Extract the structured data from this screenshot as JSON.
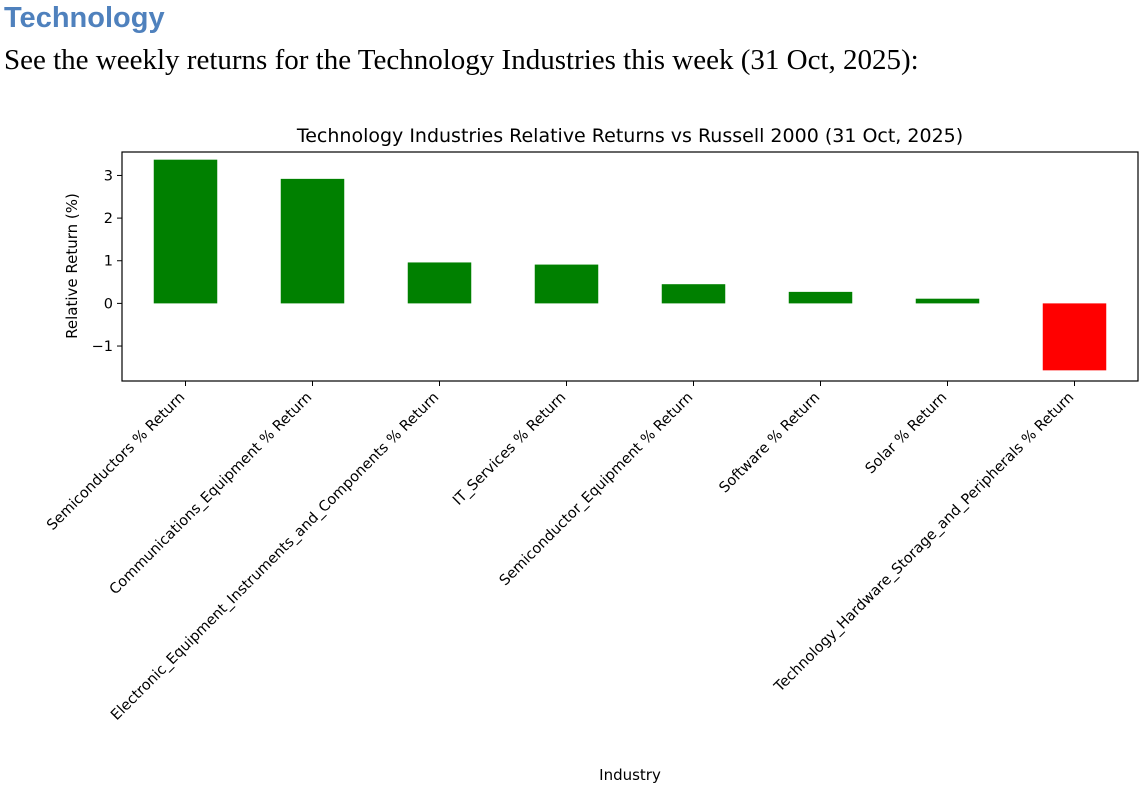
{
  "page": {
    "heading": "Technology",
    "intro": "See the weekly returns for the Technology Industries this week (31 Oct, 2025):",
    "heading_color": "#4F81BD"
  },
  "colors": {
    "positive": "#008000",
    "negative": "#FF0000"
  },
  "chart_data": {
    "type": "bar",
    "title": "Technology Industries Relative Returns vs Russell 2000 (31 Oct, 2025)",
    "xlabel": "Industry",
    "ylabel": "Relative Return (%)",
    "ylim": [
      -1.82,
      3.55
    ],
    "yticks": [
      -1,
      0,
      1,
      2,
      3
    ],
    "ytick_labels": [
      "−1",
      "0",
      "1",
      "2",
      "3"
    ],
    "categories": [
      "Semiconductors % Return",
      "Communications_Equipment % Return",
      "Electronic_Equipment_Instruments_and_Components % Return",
      "IT_Services % Return",
      "Semiconductor_Equipment % Return",
      "Software % Return",
      "Solar % Return",
      "Technology_Hardware_Storage_and_Peripherals % Return"
    ],
    "values": [
      3.37,
      2.92,
      0.96,
      0.91,
      0.45,
      0.27,
      0.11,
      -1.57
    ]
  }
}
